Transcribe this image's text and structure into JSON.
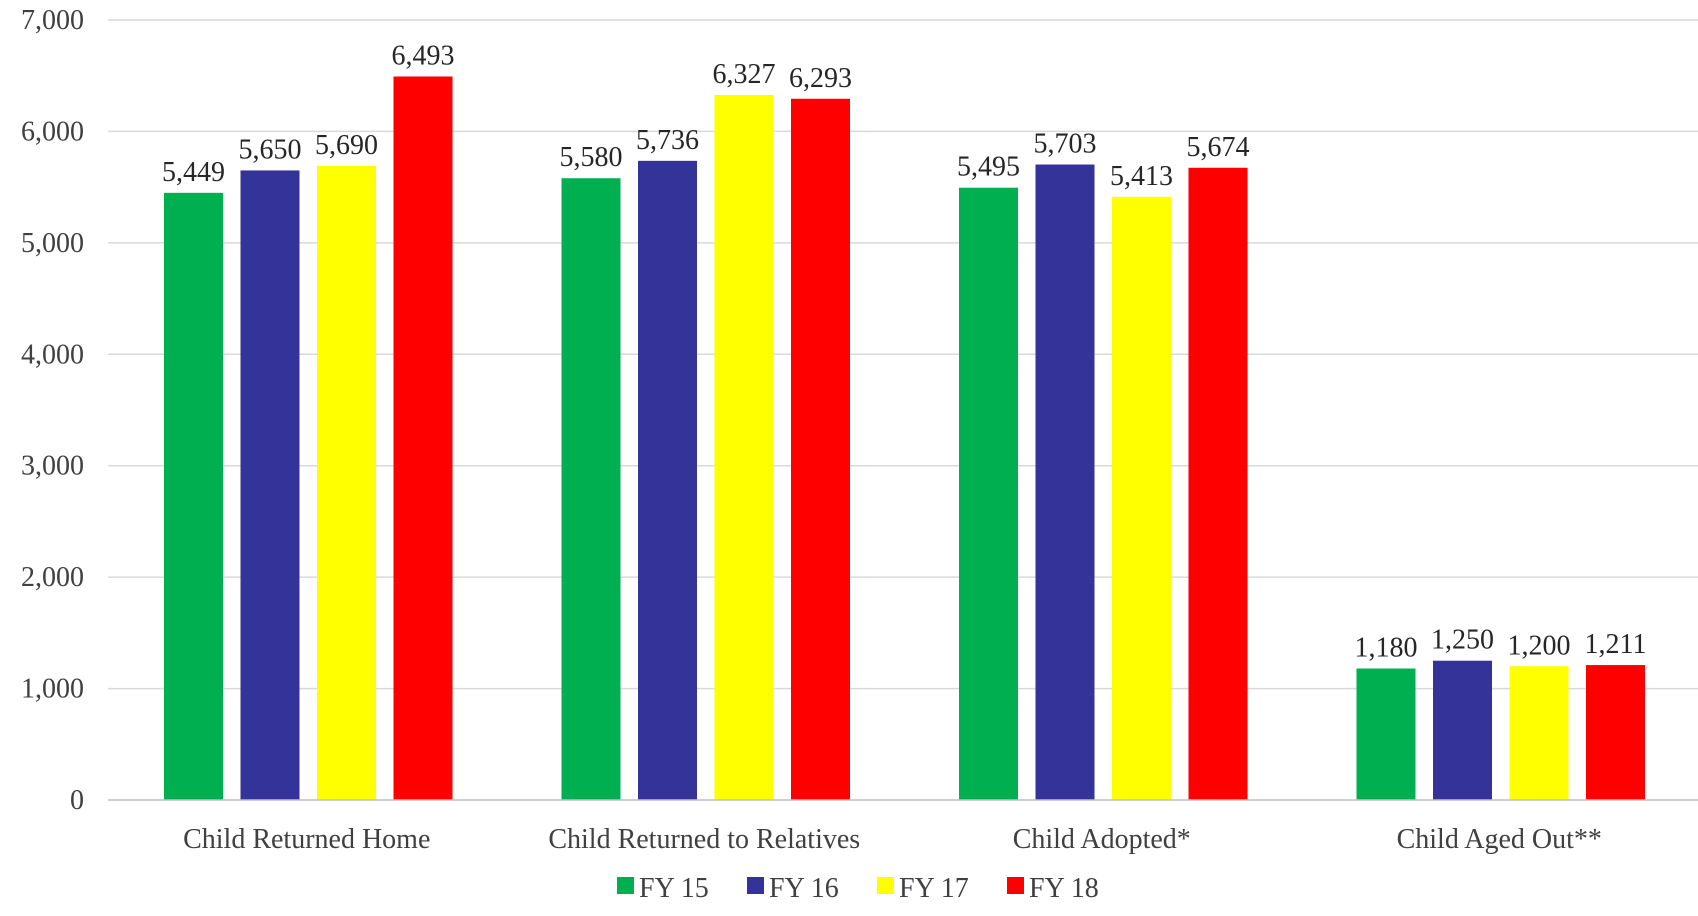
{
  "chart_data": {
    "type": "bar",
    "categories": [
      "Child Returned Home",
      "Child Returned to Relatives",
      "Child Adopted*",
      "Child Aged Out**"
    ],
    "series": [
      {
        "name": "FY 15",
        "color": "#00b050",
        "values": [
          5449,
          5580,
          5495,
          1180
        ],
        "labels": [
          "5,449",
          "5,580",
          "5,495",
          "1,180"
        ]
      },
      {
        "name": "FY 16",
        "color": "#333399",
        "values": [
          5650,
          5736,
          5703,
          1250
        ],
        "labels": [
          "5,650",
          "5,736",
          "5,703",
          "1,250"
        ]
      },
      {
        "name": "FY 17",
        "color": "#ffff00",
        "values": [
          5690,
          6327,
          5413,
          1200
        ],
        "labels": [
          "5,690",
          "6,327",
          "5,413",
          "1,200"
        ]
      },
      {
        "name": "FY 18",
        "color": "#ff0000",
        "values": [
          6493,
          6293,
          5674,
          1211
        ],
        "labels": [
          "6,493",
          "6,293",
          "5,674",
          "1,211"
        ]
      }
    ],
    "ylim": [
      0,
      7000
    ],
    "yticks": [
      0,
      1000,
      2000,
      3000,
      4000,
      5000,
      6000,
      7000
    ],
    "ytick_labels": [
      "0",
      "1,000",
      "2,000",
      "3,000",
      "4,000",
      "5,000",
      "6,000",
      "7,000"
    ],
    "grid": true,
    "legend_position": "bottom",
    "title": "",
    "xlabel": "",
    "ylabel": ""
  }
}
